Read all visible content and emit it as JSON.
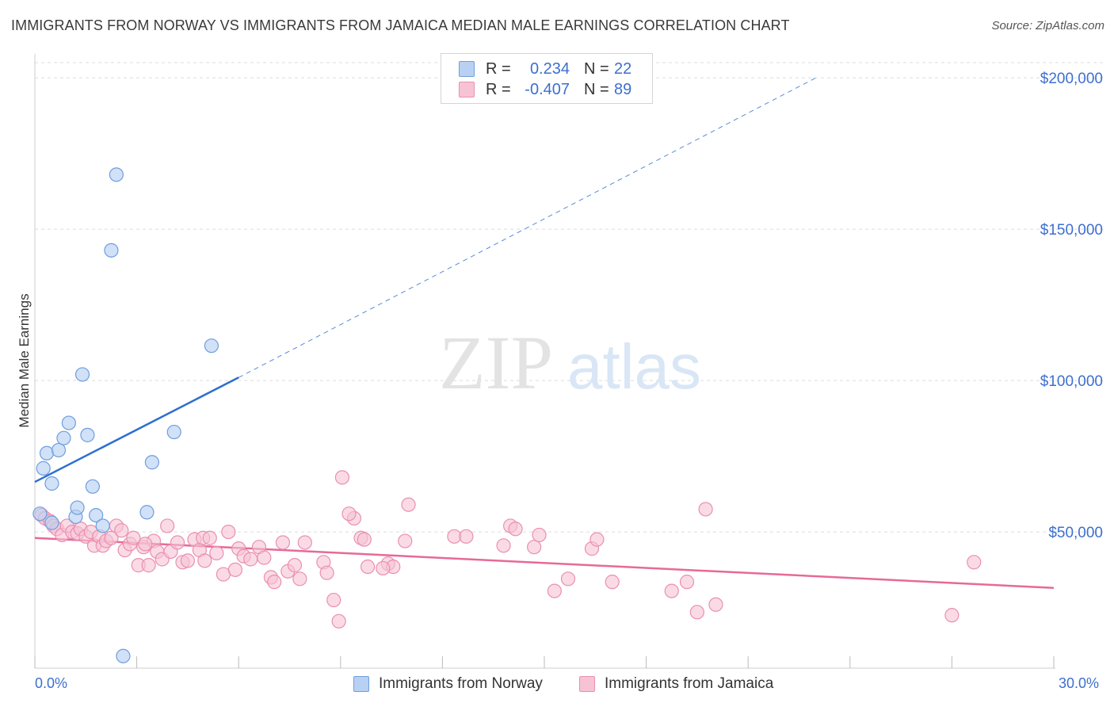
{
  "title": "IMMIGRANTS FROM NORWAY VS IMMIGRANTS FROM JAMAICA MEDIAN MALE EARNINGS CORRELATION CHART",
  "source": "Source: ZipAtlas.com",
  "watermark": {
    "zip": "ZIP",
    "atlas": "atlas"
  },
  "colors": {
    "norway_fill": "#b8d1f3",
    "norway_stroke": "#6e9ede",
    "norway_line": "#2d6fcf",
    "jamaica_fill": "#f7c3d4",
    "jamaica_stroke": "#ea8fb0",
    "jamaica_line": "#e66a98",
    "axis_label": "#3d6fd0",
    "grid": "#dcdcdc"
  },
  "legend": {
    "rows": [
      {
        "r_label": "R =",
        "r_value": "0.234",
        "n_label": "N =",
        "n_value": "22"
      },
      {
        "r_label": "R =",
        "r_value": "-0.407",
        "n_label": "N =",
        "n_value": "89"
      }
    ]
  },
  "bottom_legend": {
    "series1": "Immigrants from Norway",
    "series2": "Immigrants from Jamaica"
  },
  "x_axis": {
    "min_label": "0.0%",
    "max_label": "30.0%"
  },
  "chart_data": {
    "type": "scatter",
    "title": "IMMIGRANTS FROM NORWAY VS IMMIGRANTS FROM JAMAICA MEDIAN MALE EARNINGS CORRELATION CHART",
    "xlabel": "",
    "ylabel": "Median Male Earnings",
    "xlim": [
      0,
      30
    ],
    "ylim": [
      5000,
      205000
    ],
    "y_ticks": [
      {
        "value": 50000,
        "label": "$50,000"
      },
      {
        "value": 100000,
        "label": "$100,000"
      },
      {
        "value": 150000,
        "label": "$150,000"
      },
      {
        "value": 200000,
        "label": "$200,000"
      }
    ],
    "x_ticks": [
      0,
      3,
      6,
      9,
      12,
      15,
      18,
      21,
      24,
      27,
      30
    ],
    "series": [
      {
        "name": "Immigrants from Norway",
        "R": 0.234,
        "N": 22,
        "trend": {
          "x0": 0,
          "y0": 66500,
          "x1": 6,
          "y1": 101000,
          "dash_x1": 23,
          "dash_y1": 200000
        },
        "points": [
          [
            0.15,
            56000
          ],
          [
            0.25,
            71000
          ],
          [
            0.35,
            76000
          ],
          [
            0.5,
            53000
          ],
          [
            0.5,
            66000
          ],
          [
            0.7,
            77000
          ],
          [
            0.85,
            81000
          ],
          [
            1.0,
            86000
          ],
          [
            1.2,
            55000
          ],
          [
            1.25,
            58000
          ],
          [
            1.4,
            102000
          ],
          [
            1.55,
            82000
          ],
          [
            1.7,
            65000
          ],
          [
            1.8,
            55500
          ],
          [
            2.0,
            52000
          ],
          [
            2.25,
            143000
          ],
          [
            2.4,
            168000
          ],
          [
            2.6,
            9000
          ],
          [
            3.3,
            56500
          ],
          [
            3.45,
            73000
          ],
          [
            4.1,
            83000
          ],
          [
            5.2,
            111500
          ]
        ]
      },
      {
        "name": "Immigrants from Jamaica",
        "R": -0.407,
        "N": 89,
        "trend": {
          "x0": 0,
          "y0": 48000,
          "x1": 30,
          "y1": 31500
        },
        "points": [
          [
            0.2,
            55500
          ],
          [
            0.3,
            54500
          ],
          [
            0.45,
            53500
          ],
          [
            0.55,
            52000
          ],
          [
            0.65,
            51000
          ],
          [
            0.8,
            49000
          ],
          [
            0.95,
            52000
          ],
          [
            1.1,
            50000
          ],
          [
            1.25,
            49500
          ],
          [
            1.35,
            51000
          ],
          [
            1.5,
            48500
          ],
          [
            1.65,
            50000
          ],
          [
            1.75,
            45500
          ],
          [
            1.9,
            48500
          ],
          [
            2.0,
            45500
          ],
          [
            2.1,
            47000
          ],
          [
            2.25,
            48000
          ],
          [
            2.4,
            52000
          ],
          [
            2.55,
            50500
          ],
          [
            2.65,
            44000
          ],
          [
            2.8,
            46000
          ],
          [
            2.9,
            48000
          ],
          [
            3.05,
            39000
          ],
          [
            3.2,
            45000
          ],
          [
            3.35,
            39000
          ],
          [
            3.5,
            47000
          ],
          [
            3.6,
            43500
          ],
          [
            3.75,
            41000
          ],
          [
            3.9,
            52000
          ],
          [
            4.0,
            43500
          ],
          [
            4.2,
            46500
          ],
          [
            4.35,
            40000
          ],
          [
            4.5,
            40500
          ],
          [
            4.7,
            47500
          ],
          [
            4.85,
            44000
          ],
          [
            4.95,
            48000
          ],
          [
            5.15,
            48000
          ],
          [
            5.35,
            43000
          ],
          [
            5.55,
            36000
          ],
          [
            5.7,
            50000
          ],
          [
            5.9,
            37500
          ],
          [
            6.0,
            44500
          ],
          [
            6.15,
            42000
          ],
          [
            6.35,
            41000
          ],
          [
            6.6,
            45000
          ],
          [
            6.75,
            41500
          ],
          [
            6.95,
            35000
          ],
          [
            7.05,
            33500
          ],
          [
            7.3,
            46500
          ],
          [
            7.45,
            37000
          ],
          [
            7.65,
            39000
          ],
          [
            7.8,
            34500
          ],
          [
            7.95,
            46500
          ],
          [
            8.5,
            40000
          ],
          [
            8.6,
            36500
          ],
          [
            8.8,
            27500
          ],
          [
            8.95,
            20500
          ],
          [
            9.05,
            68000
          ],
          [
            9.4,
            54500
          ],
          [
            9.6,
            48000
          ],
          [
            9.7,
            47500
          ],
          [
            9.8,
            38500
          ],
          [
            10.4,
            39500
          ],
          [
            10.55,
            38500
          ],
          [
            10.9,
            47000
          ],
          [
            11.0,
            59000
          ],
          [
            12.35,
            48500
          ],
          [
            12.7,
            48500
          ],
          [
            13.8,
            45500
          ],
          [
            14.0,
            52000
          ],
          [
            14.15,
            51000
          ],
          [
            14.7,
            45000
          ],
          [
            14.85,
            49000
          ],
          [
            15.3,
            30500
          ],
          [
            15.7,
            34500
          ],
          [
            16.4,
            44500
          ],
          [
            16.55,
            47500
          ],
          [
            17.0,
            33500
          ],
          [
            18.75,
            30500
          ],
          [
            19.2,
            33500
          ],
          [
            19.5,
            23500
          ],
          [
            19.75,
            57500
          ],
          [
            20.05,
            26000
          ],
          [
            27.0,
            22500
          ],
          [
            27.65,
            40000
          ],
          [
            10.25,
            38000
          ],
          [
            3.25,
            46000
          ],
          [
            5.0,
            40500
          ],
          [
            9.25,
            56000
          ]
        ]
      }
    ]
  }
}
